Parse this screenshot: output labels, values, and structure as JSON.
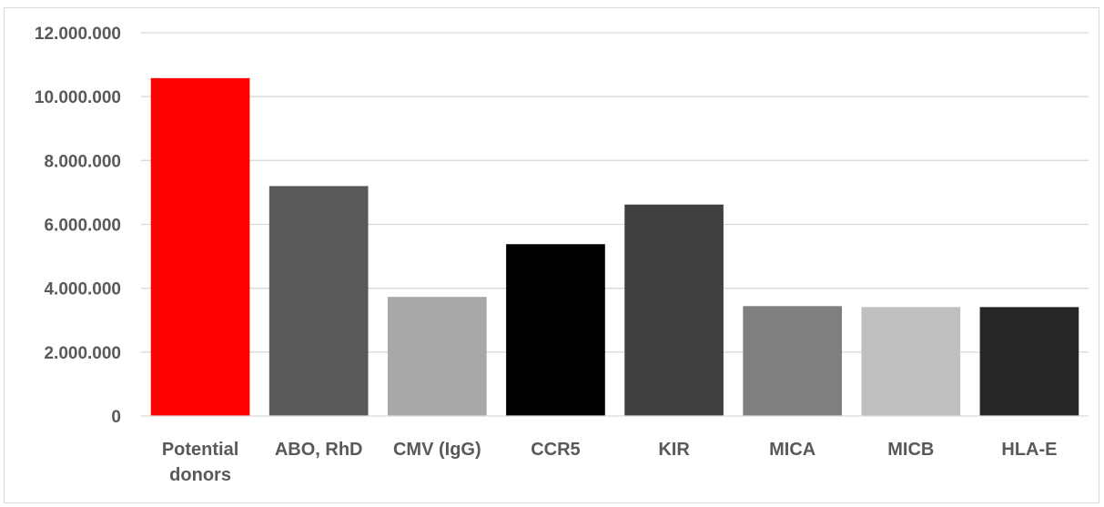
{
  "chart_data": {
    "type": "bar",
    "title": "",
    "xlabel": "",
    "ylabel": "",
    "categories": [
      [
        "Potential",
        "donors"
      ],
      [
        "ABO, RhD"
      ],
      [
        "CMV (IgG)"
      ],
      [
        "CCR5"
      ],
      [
        "KIR"
      ],
      [
        "MICA"
      ],
      [
        "MICB"
      ],
      [
        "HLA-E"
      ]
    ],
    "values": [
      10580000,
      7200000,
      3730000,
      5380000,
      6620000,
      3440000,
      3410000,
      3410000
    ],
    "colors": [
      "#ff0000",
      "#595959",
      "#aaa7a7",
      "#000000",
      "#404040",
      "#7f7f7f",
      "#bfbfbf",
      "#262626"
    ],
    "ylim": [
      0,
      12000000
    ],
    "yticks": [
      0,
      2000000,
      4000000,
      6000000,
      8000000,
      10000000,
      12000000
    ],
    "ytick_labels": [
      "0",
      "2.000.000",
      "4.000.000",
      "6.000.000",
      "8.000.000",
      "10.000.000",
      "12.000.000"
    ],
    "grid": true,
    "legend": false
  }
}
